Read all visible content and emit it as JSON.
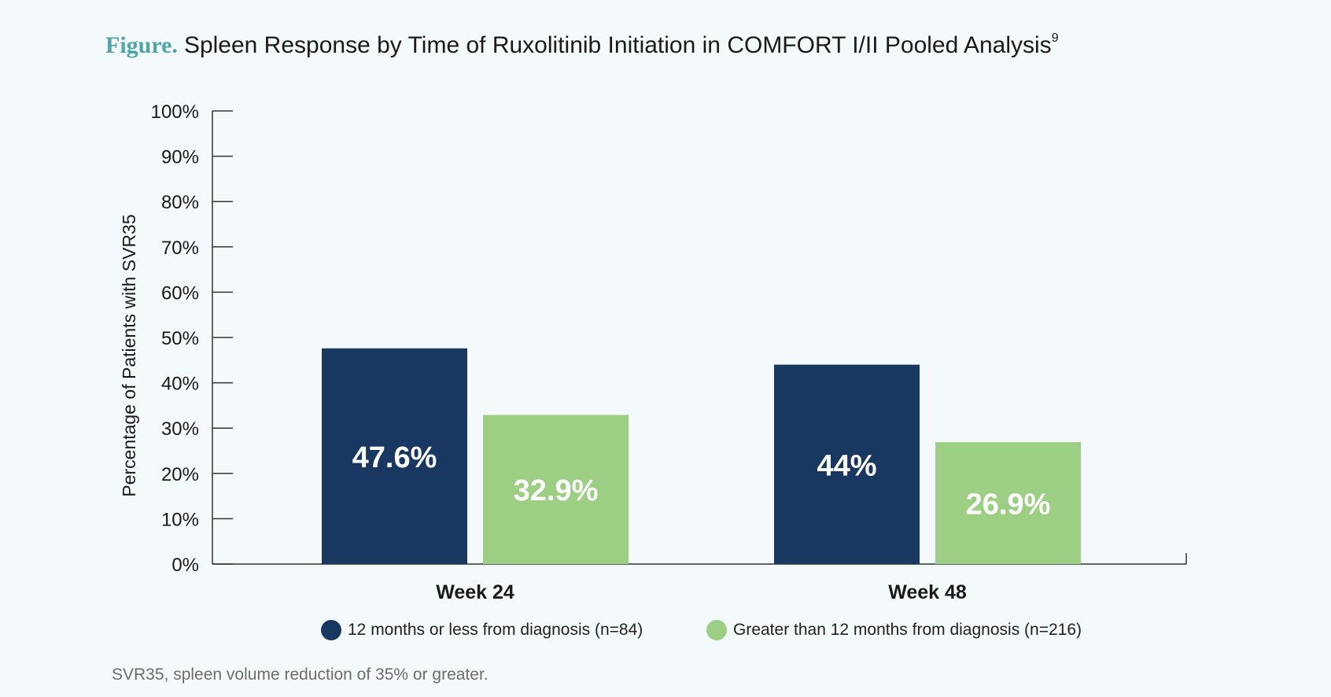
{
  "header": {
    "figure_label": "Figure.",
    "title": "Spleen Response by Time of Ruxolitinib Initiation in COMFORT I/II Pooled Analysis",
    "superscript": "9"
  },
  "chart_data": {
    "type": "bar",
    "categories": [
      "Week 24",
      "Week 48"
    ],
    "series": [
      {
        "name": "12 months or less from diagnosis (n=84)",
        "values": [
          47.6,
          44
        ],
        "labels": [
          "47.6%",
          "44%"
        ],
        "color": "#183862"
      },
      {
        "name": "Greater than 12 months from diagnosis (n=216)",
        "values": [
          32.9,
          26.9
        ],
        "labels": [
          "32.9%",
          "26.9%"
        ],
        "color": "#9ccf84"
      }
    ],
    "ylabel": "Percentage of Patients with SVR35",
    "xlabel": "",
    "ylim": [
      0,
      100
    ],
    "yticks": [
      "0%",
      "10%",
      "20%",
      "30%",
      "40%",
      "50%",
      "60%",
      "70%",
      "80%",
      "90%",
      "100%"
    ],
    "grid": false,
    "legend_position": "bottom"
  },
  "footnote": "SVR35, spleen volume reduction of 35% or greater."
}
